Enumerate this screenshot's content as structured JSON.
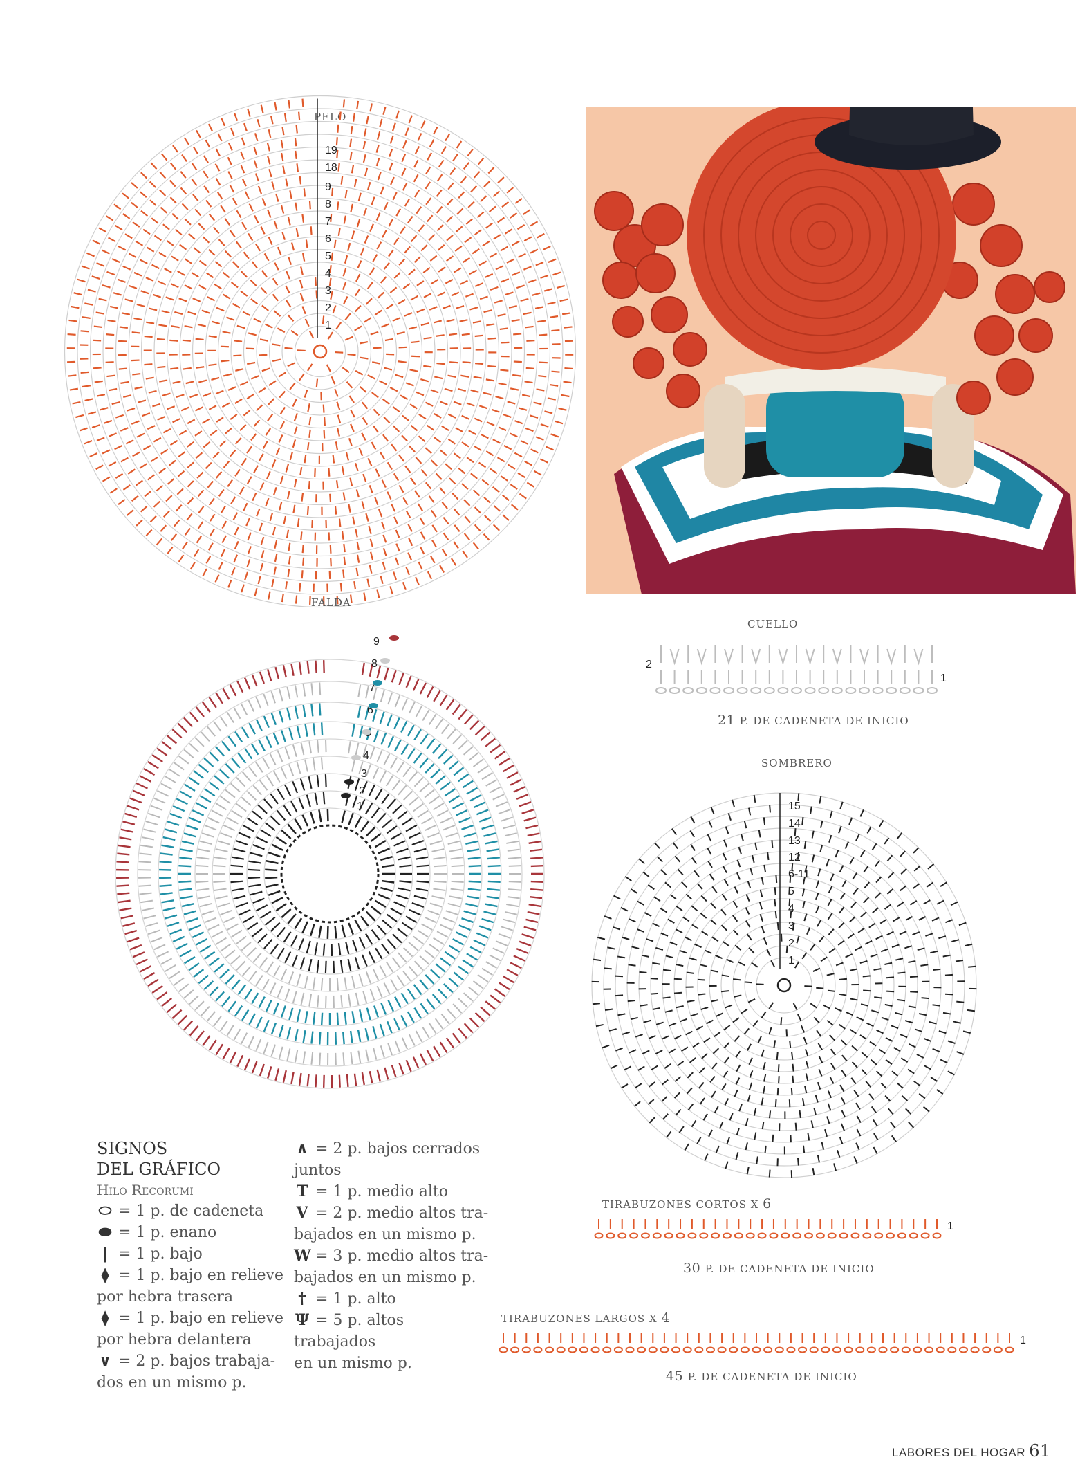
{
  "charts": {
    "pelo": {
      "title": "PELO",
      "rounds": [
        "19",
        "18",
        "9",
        "8",
        "7",
        "6",
        "5",
        "4",
        "3",
        "2",
        "1"
      ]
    },
    "falda": {
      "title": "FALDA",
      "rounds": [
        "9",
        "8",
        "7",
        "6",
        "5",
        "4",
        "3",
        "2",
        "1"
      ]
    },
    "cuello": {
      "title": "CUELLO",
      "row_left": "2",
      "row_right": "1",
      "count": "21",
      "caption_rest": "p. de cadeneta de inicio"
    },
    "sombrero": {
      "title": "SOMBRERO",
      "rounds": [
        "15",
        "14",
        "13",
        "12",
        "6-11",
        "5",
        "4",
        "3",
        "2",
        "1"
      ]
    },
    "tirabuzones_cortos": {
      "title": "TIRABUZONES CORTOS X",
      "qty": "6",
      "row": "1",
      "count": "30",
      "caption_rest": "p. de cadeneta de inicio"
    },
    "tirabuzones_largos": {
      "title": "TIRABUZONES LARGOS X",
      "qty": "4",
      "row": "1",
      "count": "45",
      "caption_rest": "p. de cadeneta de inicio"
    }
  },
  "colors": {
    "orange": "#e05a2b",
    "grey": "#b9b9b9",
    "red": "#a8353a",
    "teal": "#1f8fa6",
    "black": "#222222",
    "light_grey": "#cfcfcf"
  },
  "legend": {
    "title_1": "SIGNOS",
    "title_2": "DEL GRÁFICO",
    "subtitle": "Hilo Recorumi",
    "items": [
      {
        "icon": "chain-stitch-icon",
        "lines": [
          "= 1 p. de cadeneta"
        ]
      },
      {
        "icon": "slip-stitch-icon",
        "lines": [
          "= 1 p. enano"
        ]
      },
      {
        "icon": "single-crochet-icon",
        "lines": [
          "= 1 p. bajo"
        ]
      },
      {
        "icon": "single-crochet-back-loop-icon",
        "lines": [
          "= 1 p. bajo en relieve",
          "por hebra trasera"
        ]
      },
      {
        "icon": "single-crochet-front-loop-icon",
        "lines": [
          "= 1 p. bajo en relieve",
          "por hebra delantera"
        ]
      },
      {
        "icon": "two-single-crochet-increase-icon",
        "lines": [
          "= 2 p. bajos trabaja-",
          "dos en un mismo p."
        ]
      },
      {
        "icon": "two-single-crochet-decrease-icon",
        "lines": [
          "= 2 p. bajos cerrados",
          "juntos"
        ]
      },
      {
        "icon": "half-double-crochet-icon",
        "lines": [
          "= 1 p. medio alto"
        ]
      },
      {
        "icon": "two-half-double-increase-icon",
        "lines": [
          "= 2 p. medio altos tra-",
          "bajados en un mismo p."
        ]
      },
      {
        "icon": "three-half-double-increase-icon",
        "lines": [
          "= 3 p. medio altos tra-",
          "bajados en un mismo p."
        ]
      },
      {
        "icon": "double-crochet-icon",
        "lines": [
          "= 1 p. alto"
        ]
      },
      {
        "icon": "five-double-crochet-shell-icon",
        "lines": [
          "= 5 p. altos",
          "trabajados",
          "en un mismo p."
        ]
      }
    ]
  },
  "footer": {
    "magazine": "LABORES DEL HOGAR",
    "page": "61"
  }
}
